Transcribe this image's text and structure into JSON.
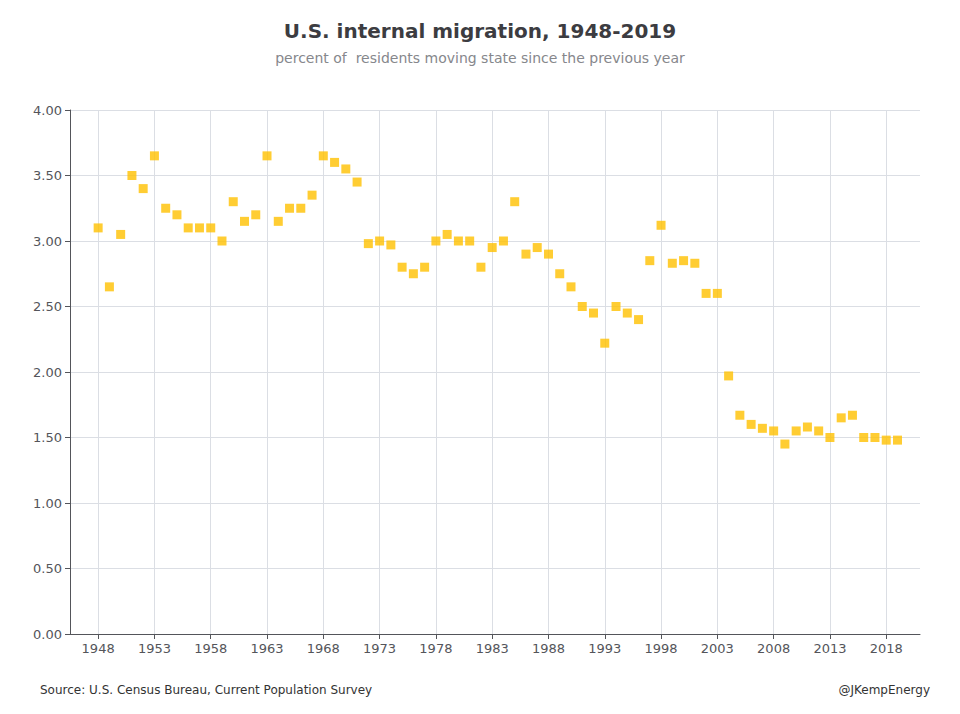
{
  "chart_data": {
    "type": "scatter",
    "title": "U.S. internal migration, 1948-2019",
    "subtitle": "percent of  residents moving state since the previous year",
    "annotations": [
      "Source: U.S. Census Bureau, Current Population Survey",
      "@JKempEnergy"
    ],
    "x": [
      1948,
      1949,
      1950,
      1951,
      1952,
      1953,
      1954,
      1955,
      1956,
      1957,
      1958,
      1959,
      1960,
      1961,
      1962,
      1963,
      1964,
      1965,
      1966,
      1967,
      1968,
      1969,
      1970,
      1971,
      1972,
      1973,
      1974,
      1975,
      1976,
      1977,
      1978,
      1979,
      1980,
      1981,
      1982,
      1983,
      1984,
      1985,
      1986,
      1987,
      1988,
      1989,
      1990,
      1991,
      1992,
      1993,
      1994,
      1995,
      1996,
      1997,
      1998,
      1999,
      2000,
      2001,
      2002,
      2003,
      2004,
      2005,
      2006,
      2007,
      2008,
      2009,
      2010,
      2011,
      2012,
      2013,
      2014,
      2015,
      2016,
      2017,
      2018,
      2019
    ],
    "values": [
      3.1,
      2.65,
      3.05,
      3.5,
      3.4,
      3.65,
      3.25,
      3.2,
      3.1,
      3.1,
      3.1,
      3.0,
      3.3,
      3.15,
      3.2,
      3.65,
      3.15,
      3.25,
      3.25,
      3.35,
      3.65,
      3.6,
      3.55,
      3.45,
      2.98,
      3.0,
      2.97,
      2.8,
      2.75,
      2.8,
      3.0,
      3.05,
      3.0,
      3.0,
      2.8,
      2.95,
      3.0,
      3.3,
      2.9,
      2.95,
      2.9,
      2.75,
      2.65,
      2.5,
      2.45,
      2.22,
      2.5,
      2.45,
      2.4,
      2.85,
      3.12,
      2.83,
      2.85,
      2.83,
      2.6,
      2.6,
      1.97,
      1.67,
      1.6,
      1.57,
      1.55,
      1.45,
      1.55,
      1.58,
      1.55,
      1.5,
      1.65,
      1.67,
      1.5,
      1.5,
      1.48,
      1.48
    ],
    "color": "#FFC000",
    "marker": "square",
    "xlim": [
      1945.5,
      2021
    ],
    "xticks": [
      1948,
      1953,
      1958,
      1963,
      1968,
      1973,
      1978,
      1983,
      1988,
      1993,
      1998,
      2003,
      2008,
      2013,
      2018
    ],
    "ylim": [
      0.0,
      4.0
    ],
    "yticks": [
      {
        "value": 0.0,
        "label": "0.00"
      },
      {
        "value": 0.5,
        "label": "0.50"
      },
      {
        "value": 1.0,
        "label": "1.00"
      },
      {
        "value": 1.5,
        "label": "1.50"
      },
      {
        "value": 2.0,
        "label": "2.00"
      },
      {
        "value": 2.5,
        "label": "2.50"
      },
      {
        "value": 3.0,
        "label": "3.00"
      },
      {
        "value": 3.5,
        "label": "3.50"
      },
      {
        "value": 4.0,
        "label": "4.00"
      }
    ],
    "grid": true
  }
}
